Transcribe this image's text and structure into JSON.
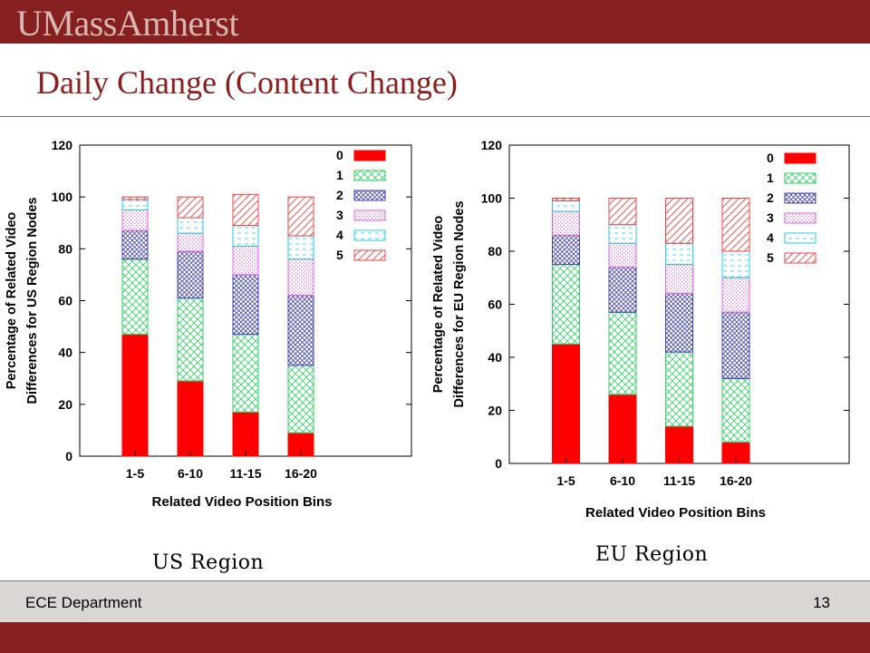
{
  "header": {
    "logo_text": "UMassAmherst"
  },
  "slide": {
    "title": "Daily Change (Content Change)"
  },
  "footer": {
    "department": "ECE Department",
    "page_number": "13"
  },
  "colors": {
    "brand": "#861f1f",
    "series": [
      "#ff0000",
      "#33cc66",
      "#4444aa",
      "#e066e0",
      "#22ccee",
      "#ee4444"
    ]
  },
  "chart_data": [
    {
      "type": "bar",
      "stacked": true,
      "caption": "US Region",
      "categories": [
        "1-5",
        "6-10",
        "11-15",
        "16-20"
      ],
      "xlabel": "Related Video Position Bins",
      "ylabel_lines": [
        "Percentage of Related Video",
        "Differences for US Region Nodes"
      ],
      "ylim": [
        0,
        120
      ],
      "yticks": [
        0,
        20,
        40,
        60,
        80,
        100,
        120
      ],
      "legend_position": "top-right",
      "series": [
        {
          "name": "0",
          "values": [
            47,
            29,
            17,
            9
          ]
        },
        {
          "name": "1",
          "values": [
            29,
            32,
            30,
            26
          ]
        },
        {
          "name": "2",
          "values": [
            11,
            18,
            23,
            27
          ]
        },
        {
          "name": "3",
          "values": [
            8,
            7,
            11,
            14
          ]
        },
        {
          "name": "4",
          "values": [
            4,
            6,
            8,
            9
          ]
        },
        {
          "name": "5",
          "values": [
            1,
            8,
            12,
            15
          ]
        }
      ]
    },
    {
      "type": "bar",
      "stacked": true,
      "caption": "EU Region",
      "categories": [
        "1-5",
        "6-10",
        "11-15",
        "16-20"
      ],
      "xlabel": "Related Video Position Bins",
      "ylabel_lines": [
        "Percentage of Related Video",
        "Differences for EU Region Nodes"
      ],
      "ylim": [
        0,
        120
      ],
      "yticks": [
        0,
        20,
        40,
        60,
        80,
        100,
        120
      ],
      "legend_position": "top-right",
      "series": [
        {
          "name": "0",
          "values": [
            45,
            26,
            14,
            8
          ]
        },
        {
          "name": "1",
          "values": [
            30,
            31,
            28,
            24
          ]
        },
        {
          "name": "2",
          "values": [
            11,
            17,
            22,
            25
          ]
        },
        {
          "name": "3",
          "values": [
            9,
            9,
            11,
            13
          ]
        },
        {
          "name": "4",
          "values": [
            4,
            7,
            8,
            10
          ]
        },
        {
          "name": "5",
          "values": [
            1,
            10,
            17,
            20
          ]
        }
      ]
    }
  ]
}
